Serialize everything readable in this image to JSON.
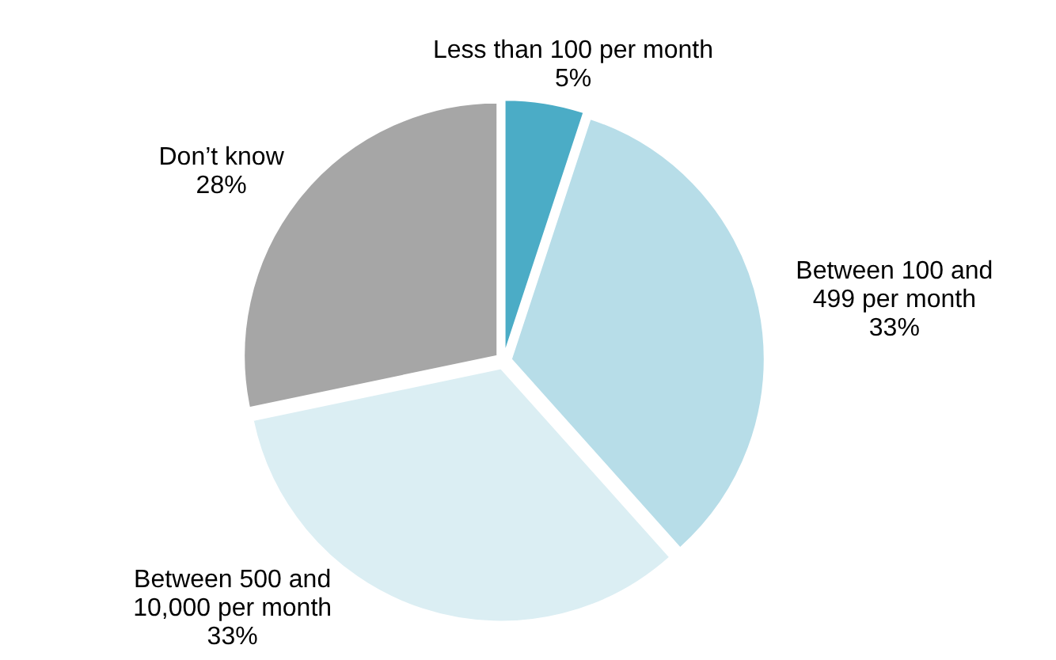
{
  "chart_data": {
    "type": "pie",
    "categories": [
      "Less than 100 per month",
      "Between 100 and 499 per month",
      "Between 500 and 10,000 per month",
      "Don’t know"
    ],
    "values": [
      5,
      33,
      33,
      28
    ],
    "colors": [
      "#4bacc6",
      "#b7dde8",
      "#dbeef3",
      "#a6a6a6"
    ],
    "value_labels": [
      "5%",
      "33%",
      "33%",
      "28%"
    ]
  }
}
